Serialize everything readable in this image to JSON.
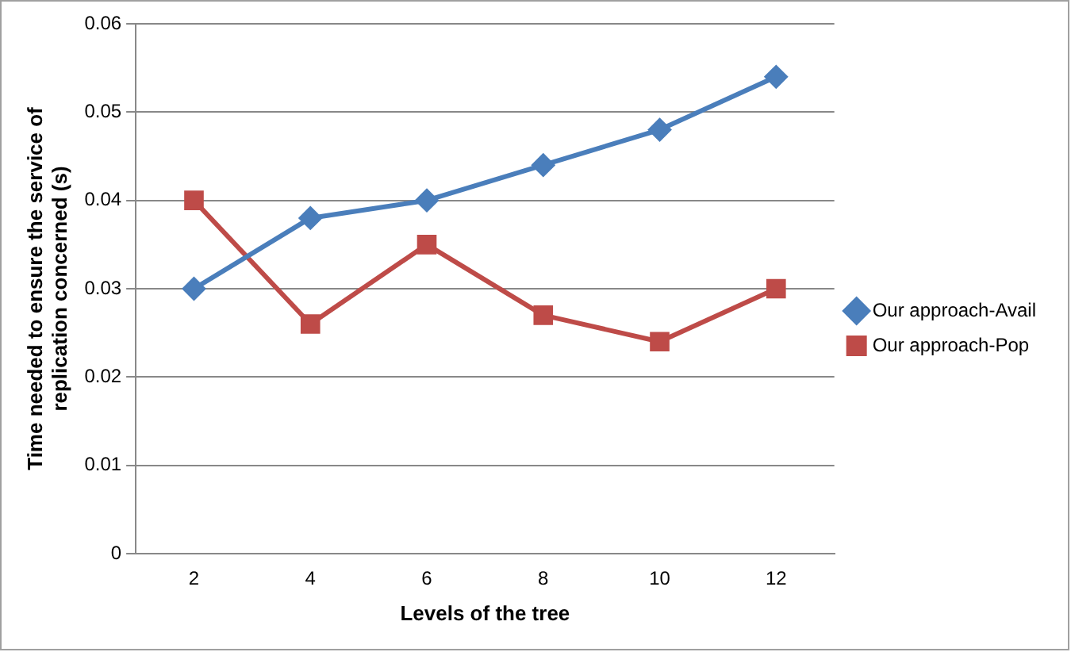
{
  "chart_data": {
    "type": "line",
    "xlabel": "Levels of the tree",
    "ylabel": "Time needed to ensure the service of replication concerned (s)",
    "categories": [
      "2",
      "4",
      "6",
      "8",
      "10",
      "12"
    ],
    "series": [
      {
        "name": "Our approach-Avail",
        "color": "#4a7ebb",
        "marker": "diamond",
        "values": [
          0.03,
          0.038,
          0.04,
          0.044,
          0.048,
          0.054
        ]
      },
      {
        "name": "Our approach-Pop",
        "color": "#be4b48",
        "marker": "square",
        "values": [
          0.04,
          0.026,
          0.035,
          0.027,
          0.024,
          0.03
        ]
      }
    ],
    "ylim": [
      0,
      0.06
    ],
    "yticks": [
      0,
      0.01,
      0.02,
      0.03,
      0.04,
      0.05,
      0.06
    ],
    "grid": "y",
    "legend": "right"
  }
}
